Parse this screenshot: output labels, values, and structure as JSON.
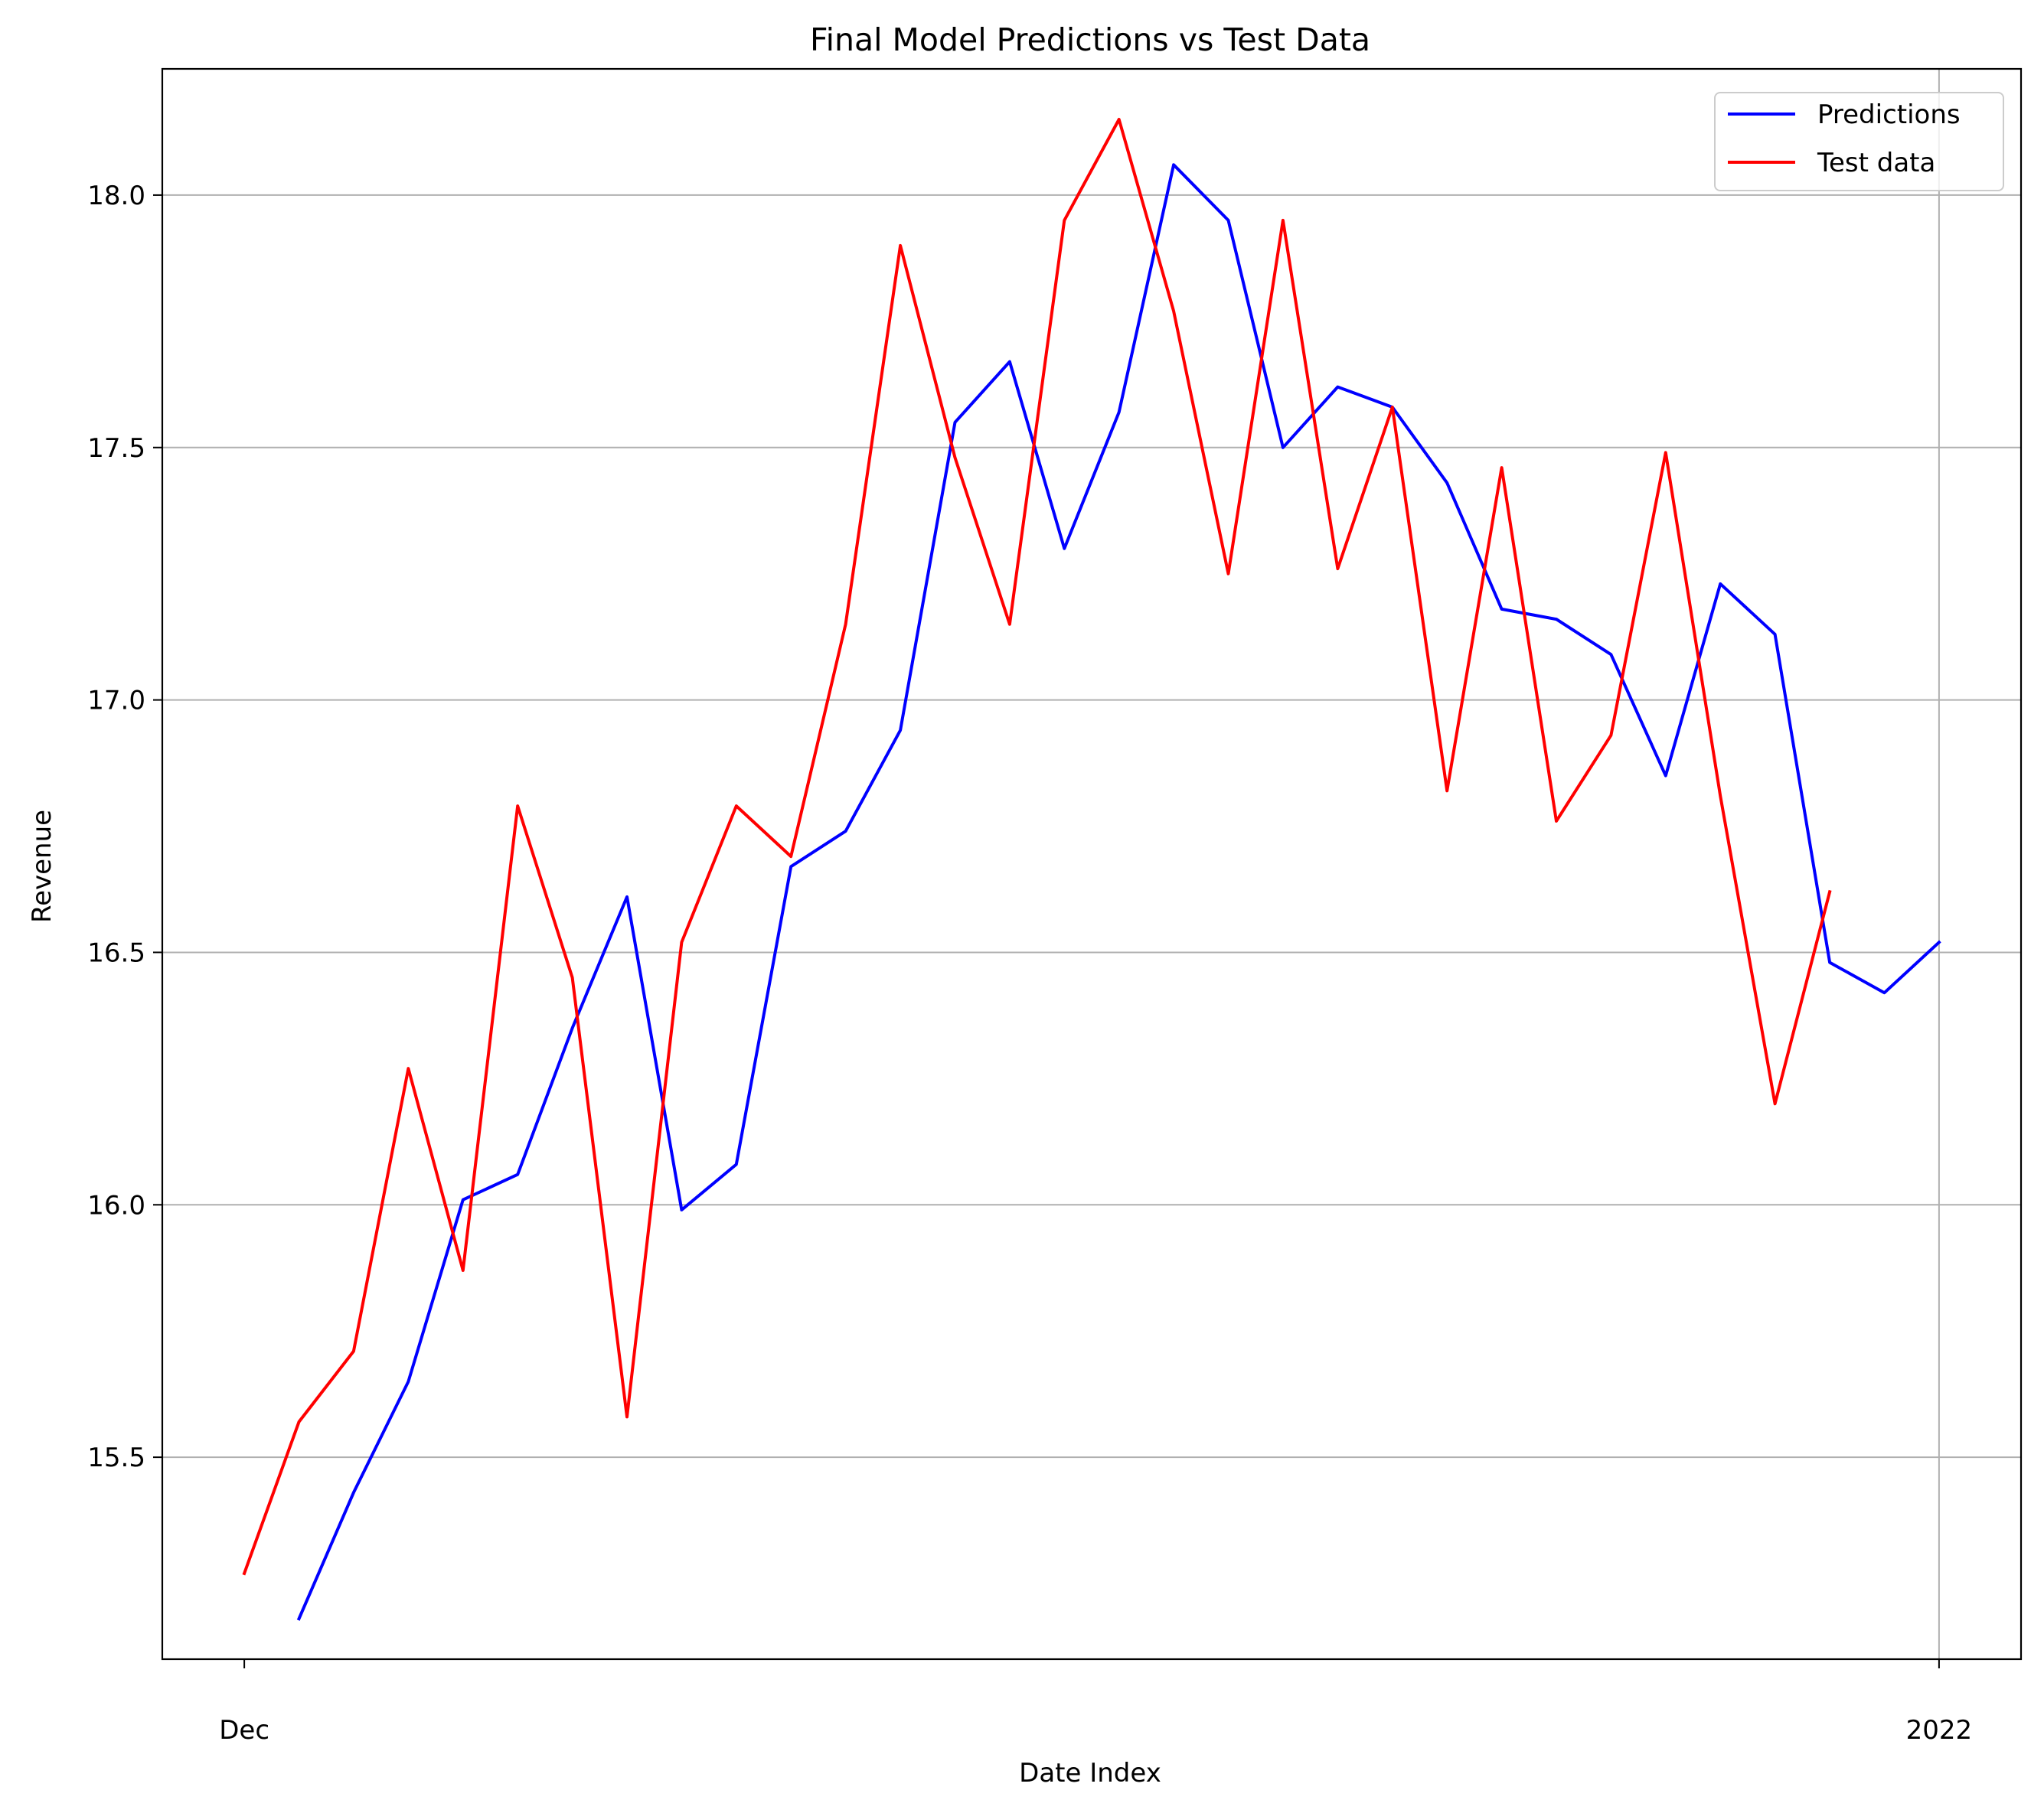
{
  "chart_data": {
    "type": "line",
    "title": "Final Model Predictions vs Test Data",
    "xlabel": "Date Index",
    "ylabel": "Revenue",
    "x_tick_labels": [
      {
        "index": 0,
        "label": "Dec"
      },
      {
        "index": 31,
        "label": "2022"
      }
    ],
    "x_range": [
      -1.5,
      32.5
    ],
    "ylim": [
      15.1,
      18.25
    ],
    "y_ticks": [
      15.5,
      16.0,
      16.5,
      17.0,
      17.5,
      18.0
    ],
    "y_tick_labels": [
      "15.5",
      "16.0",
      "16.5",
      "17.0",
      "17.5",
      "18.0"
    ],
    "grid": "y-major plus vertical line at 2022",
    "legend_position": "top-right",
    "series": [
      {
        "name": "Predictions",
        "color": "#0000ff",
        "start_index": 1,
        "values": [
          15.18,
          15.43,
          15.65,
          16.01,
          16.06,
          16.35,
          16.61,
          15.99,
          16.08,
          16.67,
          16.74,
          16.94,
          17.55,
          17.67,
          17.3,
          17.57,
          18.06,
          17.95,
          17.5,
          17.62,
          17.58,
          17.43,
          17.18,
          17.16,
          17.09,
          16.85,
          17.23,
          17.13,
          16.48,
          16.42,
          16.52
        ]
      },
      {
        "name": "Test data",
        "color": "#ff0000",
        "start_index": 0,
        "values": [
          15.27,
          15.57,
          15.71,
          16.27,
          15.87,
          16.79,
          16.45,
          15.58,
          16.52,
          16.79,
          16.69,
          17.15,
          17.9,
          17.48,
          17.15,
          17.95,
          18.15,
          17.77,
          17.25,
          17.95,
          17.26,
          17.58,
          16.82,
          17.46,
          16.76,
          16.93,
          17.49,
          16.81,
          16.2,
          16.62
        ]
      }
    ]
  }
}
